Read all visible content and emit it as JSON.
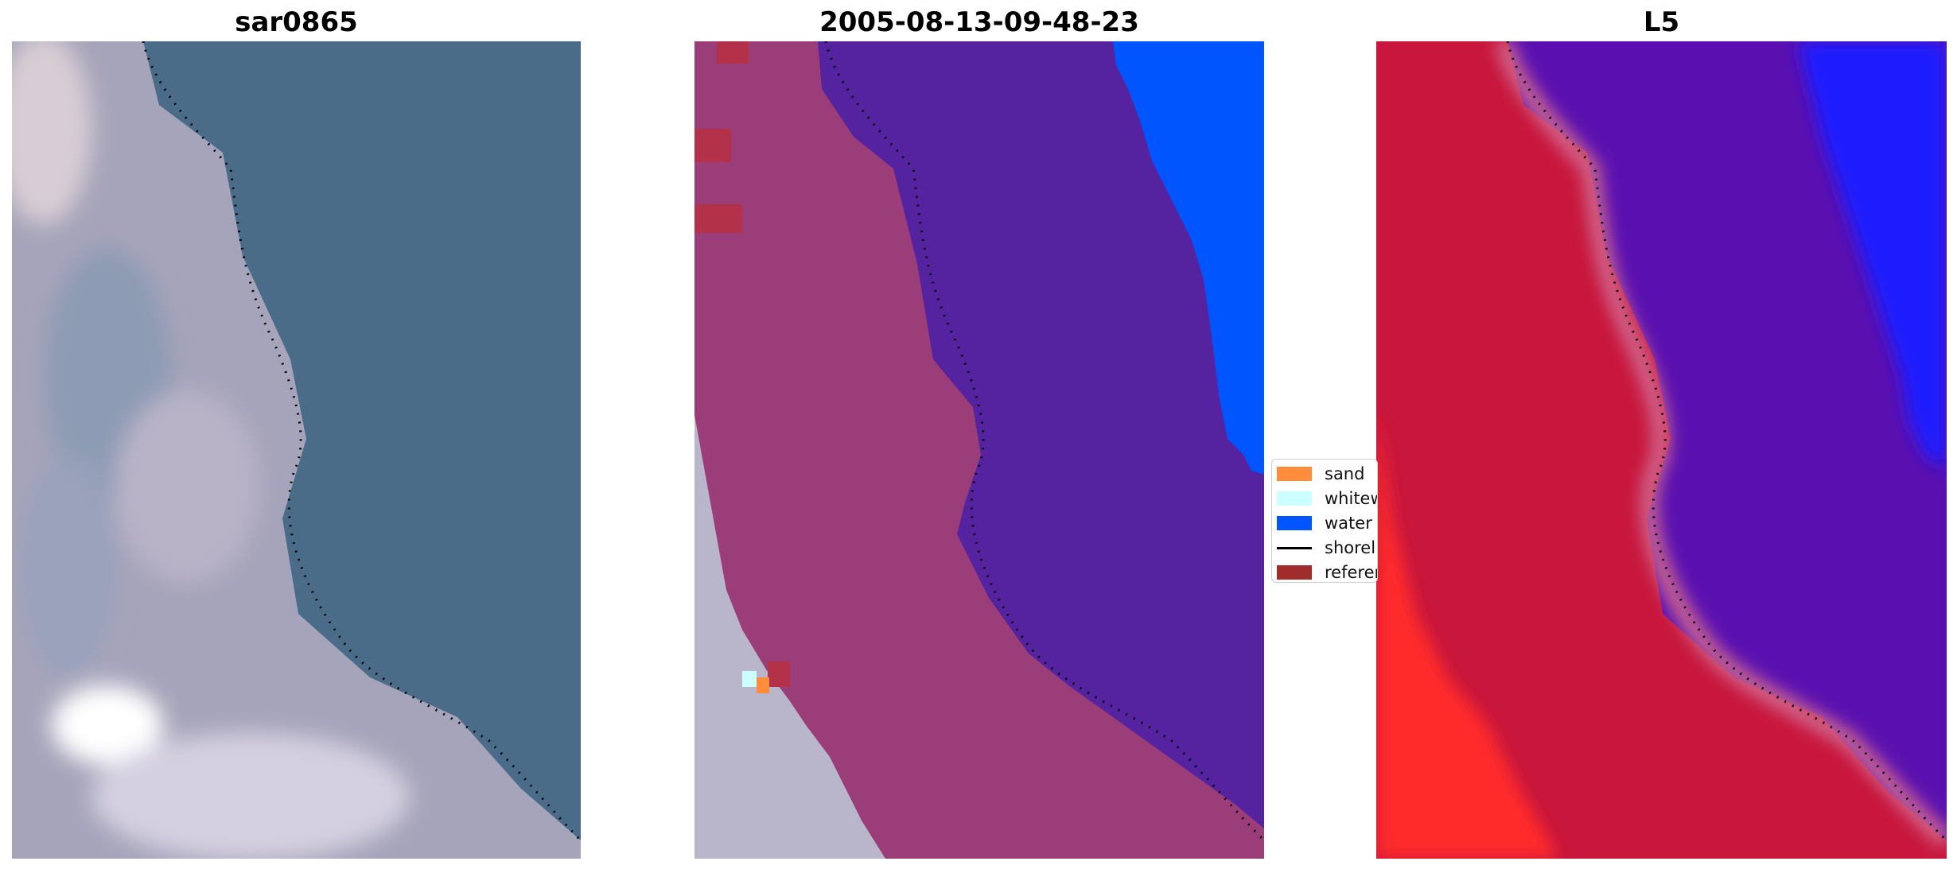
{
  "panels": [
    {
      "title": "sar0865"
    },
    {
      "title": "2005-08-13-09-48-23"
    },
    {
      "title": "L5"
    }
  ],
  "legend": {
    "items": [
      {
        "label": "sand",
        "color": "#ff8c3a",
        "kind": "patch"
      },
      {
        "label": "whitew",
        "color": "#ccffff",
        "kind": "patch"
      },
      {
        "label": "water",
        "color": "#0055ff",
        "kind": "patch"
      },
      {
        "label": "shorel",
        "color": "#000000",
        "kind": "line"
      },
      {
        "label": "referen",
        "color": "#a02c2c",
        "kind": "patch"
      }
    ]
  },
  "colors": {
    "sea_rgb": "#4a6c8a",
    "land_rgb": "#a9a8be",
    "land_class": "#9b3d78",
    "water_class": "#5522a0",
    "water_bright": "#0055ff",
    "land_L5": "#c8163c",
    "water_L5": "#5a10b0",
    "sand_L5": "#ff2a2a",
    "water_L5_bright": "#1a1aff"
  }
}
